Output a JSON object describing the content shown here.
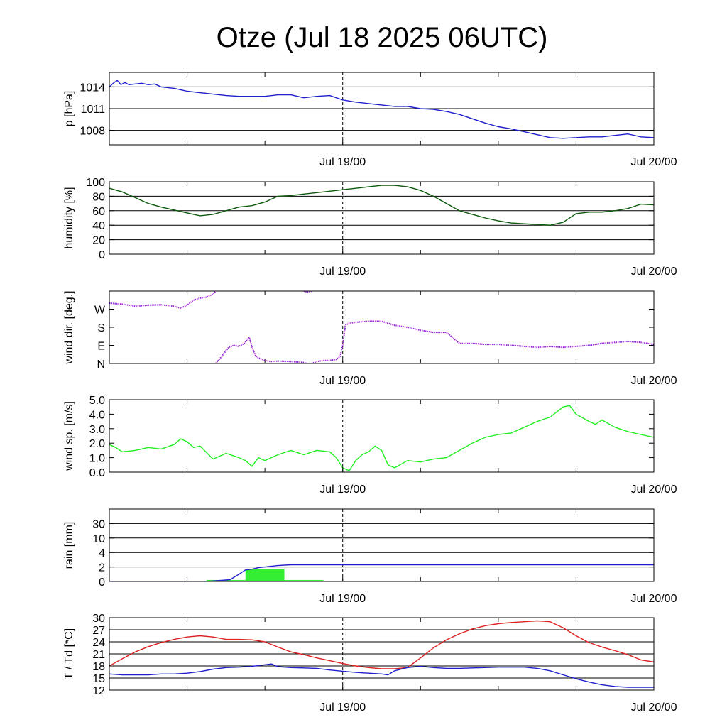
{
  "title": "Otze (Jul 18 2025 06UTC)",
  "colors": {
    "pressure": "#1f1fcc",
    "humidity": "#0b5a0b",
    "wind_dir": "#9b27d8",
    "wind_speed": "#22ee22",
    "rain_sum": "#1f1fcc",
    "rain_bar": "#33ee33",
    "temperature": "#dd2222",
    "dewpoint": "#1f1fcc"
  },
  "chart_data": [
    {
      "type": "line",
      "id": "pressure",
      "ylabel": "p [hPa]",
      "ylim": [
        1006,
        1016
      ],
      "yticks": [
        {
          "v": 1008,
          "l": "1008"
        },
        {
          "v": 1011,
          "l": "1011"
        },
        {
          "v": 1014,
          "l": "1014"
        }
      ],
      "hgrid": [
        1008,
        1011,
        1014
      ],
      "xlim": [
        0,
        42
      ],
      "xticks": [
        {
          "v": 18,
          "l": "Jul 19/00"
        },
        {
          "v": 42,
          "l": "Jul 20/00"
        }
      ],
      "minor_x": [
        6,
        12,
        24,
        30,
        36
      ],
      "vline": 18,
      "series": [
        {
          "color": "pressure",
          "x": [
            0,
            0.3,
            0.6,
            0.9,
            1.2,
            1.5,
            2,
            2.5,
            3,
            3.5,
            4,
            5,
            6,
            7,
            8,
            9,
            10,
            11,
            12,
            13,
            14,
            15,
            16,
            17,
            18,
            19,
            20,
            21,
            22,
            23,
            24,
            25,
            26,
            27,
            28,
            29,
            30,
            31,
            32,
            33,
            34,
            35,
            36,
            37,
            38,
            39,
            40,
            41,
            42
          ],
          "y": [
            1014.0,
            1014.5,
            1014.9,
            1014.3,
            1014.6,
            1014.3,
            1014.4,
            1014.5,
            1014.3,
            1014.4,
            1014.0,
            1013.8,
            1013.4,
            1013.2,
            1013.0,
            1012.8,
            1012.7,
            1012.7,
            1012.7,
            1012.9,
            1012.9,
            1012.5,
            1012.7,
            1012.8,
            1012.2,
            1011.9,
            1011.7,
            1011.5,
            1011.3,
            1011.3,
            1011.0,
            1010.9,
            1010.6,
            1010.2,
            1009.6,
            1009.0,
            1008.5,
            1008.2,
            1007.8,
            1007.4,
            1007.0,
            1006.9,
            1007.0,
            1007.1,
            1007.1,
            1007.3,
            1007.5,
            1007.1,
            1007.0
          ]
        }
      ]
    },
    {
      "type": "line",
      "id": "humidity",
      "ylabel": "humidity [%]",
      "ylim": [
        0,
        100
      ],
      "yticks": [
        {
          "v": 0,
          "l": "0"
        },
        {
          "v": 20,
          "l": "20"
        },
        {
          "v": 40,
          "l": "40"
        },
        {
          "v": 60,
          "l": "60"
        },
        {
          "v": 80,
          "l": "80"
        },
        {
          "v": 100,
          "l": "100"
        }
      ],
      "hgrid": [
        20,
        40,
        60,
        80
      ],
      "xlim": [
        0,
        42
      ],
      "xticks": [
        {
          "v": 18,
          "l": "Jul 19/00"
        },
        {
          "v": 42,
          "l": "Jul 20/00"
        }
      ],
      "minor_x": [
        6,
        12,
        24,
        30,
        36
      ],
      "vline": 18,
      "series": [
        {
          "color": "humidity",
          "x": [
            0,
            1,
            2,
            3,
            4,
            5,
            6,
            7,
            8,
            9,
            10,
            11,
            12,
            13,
            14,
            15,
            16,
            17,
            18,
            19,
            20,
            21,
            22,
            23,
            24,
            25,
            26,
            27,
            28,
            29,
            30,
            31,
            32,
            33,
            34,
            35,
            36,
            37,
            38,
            39,
            40,
            41,
            42
          ],
          "y": [
            91,
            86,
            78,
            70,
            65,
            61,
            57,
            53,
            55,
            60,
            65,
            67,
            72,
            80,
            81,
            83,
            85,
            87,
            89,
            91,
            93,
            95,
            95,
            93,
            88,
            80,
            70,
            60,
            55,
            50,
            46,
            43,
            42,
            41,
            40,
            44,
            56,
            58,
            58,
            60,
            63,
            69,
            68
          ]
        }
      ]
    },
    {
      "type": "scatter",
      "id": "wind_dir",
      "ylabel": "wind dir. [deg.]",
      "ylim": [
        0,
        360
      ],
      "yticks": [
        {
          "v": 0,
          "l": "N"
        },
        {
          "v": 90,
          "l": "E"
        },
        {
          "v": 180,
          "l": "S"
        },
        {
          "v": 270,
          "l": "W"
        }
      ],
      "hgrid": [],
      "xlim": [
        0,
        42
      ],
      "xticks": [
        {
          "v": 18,
          "l": "Jul 19/00"
        },
        {
          "v": 42,
          "l": "Jul 20/00"
        }
      ],
      "minor_x": [
        6,
        12,
        24,
        30,
        36
      ],
      "vline": 18,
      "series": [
        {
          "color": "wind_dir",
          "x": [
            0,
            1,
            2,
            3,
            4,
            5,
            5.5,
            6,
            6.5,
            7,
            7.5,
            8,
            8.2
          ],
          "y": [
            300,
            295,
            285,
            290,
            292,
            285,
            275,
            290,
            315,
            325,
            330,
            345,
            360
          ]
        },
        {
          "color": "wind_dir",
          "x": [
            15,
            15.3,
            15.6
          ],
          "y": [
            360,
            355,
            360
          ]
        },
        {
          "color": "wind_dir",
          "x": [
            8.2,
            8.6,
            9.2,
            9.6,
            10,
            10.4,
            10.8,
            11,
            11.3,
            11.6,
            12,
            12.5,
            13,
            14,
            15,
            15.5,
            16,
            16.5,
            17,
            17.5,
            17.8,
            18,
            18.2,
            18.5,
            19,
            20,
            21,
            22,
            23,
            24,
            25,
            26,
            27,
            28,
            29,
            30,
            31,
            32,
            33,
            34,
            35,
            36,
            37,
            38,
            39,
            40,
            41,
            42
          ],
          "y": [
            0,
            30,
            80,
            90,
            85,
            100,
            130,
            80,
            35,
            25,
            15,
            10,
            12,
            10,
            5,
            -3,
            10,
            15,
            15,
            20,
            35,
            90,
            190,
            200,
            205,
            210,
            210,
            190,
            180,
            165,
            155,
            155,
            100,
            100,
            95,
            95,
            90,
            85,
            80,
            85,
            80,
            85,
            90,
            100,
            105,
            110,
            105,
            95
          ]
        }
      ]
    },
    {
      "type": "line",
      "id": "wind_speed",
      "ylabel": "wind sp. [m/s]",
      "ylim": [
        0,
        5
      ],
      "yticks": [
        {
          "v": 0,
          "l": "0.0"
        },
        {
          "v": 1,
          "l": "1.0"
        },
        {
          "v": 2,
          "l": "2.0"
        },
        {
          "v": 3,
          "l": "3.0"
        },
        {
          "v": 4,
          "l": "4.0"
        },
        {
          "v": 5,
          "l": "5.0"
        }
      ],
      "hgrid": [],
      "xlim": [
        0,
        42
      ],
      "xticks": [
        {
          "v": 18,
          "l": "Jul 19/00"
        },
        {
          "v": 42,
          "l": "Jul 20/00"
        }
      ],
      "minor_x": [
        6,
        12,
        24,
        30,
        36
      ],
      "vline": 18,
      "series": [
        {
          "color": "wind_speed",
          "x": [
            0,
            0.5,
            1,
            2,
            3,
            4,
            5,
            5.5,
            6,
            6.5,
            7,
            8,
            9,
            10,
            10.5,
            11,
            11.5,
            12,
            13,
            14,
            15,
            16,
            17,
            17.5,
            18,
            18.5,
            19,
            19.5,
            20,
            20.5,
            21,
            21.5,
            22,
            23,
            24,
            25,
            26,
            27,
            28,
            29,
            30,
            31,
            32,
            33,
            34,
            35,
            35.5,
            36,
            37,
            37.5,
            38,
            39,
            40,
            41,
            42
          ],
          "y": [
            1.9,
            1.7,
            1.4,
            1.5,
            1.7,
            1.6,
            1.9,
            2.3,
            2.1,
            1.7,
            1.8,
            0.9,
            1.3,
            1.0,
            0.8,
            0.4,
            1.0,
            0.8,
            1.2,
            1.5,
            1.2,
            1.5,
            1.4,
            1.0,
            0.3,
            0.1,
            0.8,
            1.2,
            1.4,
            1.8,
            1.5,
            0.5,
            0.3,
            0.8,
            0.7,
            0.9,
            1.0,
            1.5,
            2.0,
            2.4,
            2.6,
            2.7,
            3.1,
            3.5,
            3.8,
            4.5,
            4.6,
            4.0,
            3.5,
            3.3,
            3.6,
            3.1,
            2.8,
            2.6,
            2.4
          ]
        }
      ]
    },
    {
      "type": "line",
      "id": "rain",
      "ylabel": "rain [mm]",
      "ylim": [
        0,
        5
      ],
      "yticks": [
        {
          "v": 0,
          "l": "0"
        },
        {
          "v": 1,
          "l": "2"
        },
        {
          "v": 2,
          "l": "4"
        },
        {
          "v": 3,
          "l": "10"
        },
        {
          "v": 4,
          "l": "30"
        }
      ],
      "hgrid": [
        1,
        2,
        3,
        4
      ],
      "xlim": [
        0,
        42
      ],
      "xticks": [
        {
          "v": 18,
          "l": "Jul 19/00"
        },
        {
          "v": 42,
          "l": "Jul 20/00"
        }
      ],
      "minor_x": [
        6,
        12,
        24,
        30,
        36
      ],
      "vline": 18,
      "bars": {
        "color": "rain_bar",
        "items": [
          {
            "x0": 7.5,
            "x1": 10.5,
            "y": 0.1
          },
          {
            "x0": 10.5,
            "x1": 13.5,
            "y": 0.85
          },
          {
            "x0": 13.5,
            "x1": 16.5,
            "y": 0.1
          }
        ]
      },
      "series": [
        {
          "color": "rain_sum",
          "x": [
            0,
            7.5,
            9,
            9.3,
            10,
            10.5,
            11,
            11.5,
            12,
            12.5,
            13,
            14,
            15,
            16,
            17,
            18,
            20,
            25,
            30,
            35,
            42
          ],
          "y": [
            0,
            0,
            0.1,
            0.12,
            0.5,
            0.8,
            0.85,
            0.95,
            1.0,
            1.05,
            1.1,
            1.15,
            1.15,
            1.15,
            1.15,
            1.15,
            1.15,
            1.15,
            1.15,
            1.15,
            1.15
          ]
        }
      ]
    },
    {
      "type": "line",
      "id": "temperature",
      "ylabel": "T / Td [*C]",
      "ylim": [
        12,
        30
      ],
      "yticks": [
        {
          "v": 12,
          "l": "12"
        },
        {
          "v": 15,
          "l": "15"
        },
        {
          "v": 18,
          "l": "18"
        },
        {
          "v": 21,
          "l": "21"
        },
        {
          "v": 24,
          "l": "24"
        },
        {
          "v": 27,
          "l": "27"
        },
        {
          "v": 30,
          "l": "30"
        }
      ],
      "hgrid": [
        15,
        18,
        21,
        24,
        27
      ],
      "xlim": [
        0,
        42
      ],
      "xticks": [
        {
          "v": 18,
          "l": "Jul 19/00"
        },
        {
          "v": 42,
          "l": "Jul 20/00"
        }
      ],
      "minor_x": [
        6,
        12,
        24,
        30,
        36
      ],
      "vline": 18,
      "series": [
        {
          "color": "temperature",
          "x": [
            0,
            1,
            2,
            3,
            4,
            5,
            6,
            7,
            8,
            9,
            10,
            11,
            12,
            13,
            14,
            15,
            16,
            17,
            18,
            19,
            20,
            21,
            22,
            23,
            24,
            25,
            26,
            27,
            28,
            29,
            30,
            31,
            32,
            33,
            34,
            35,
            36,
            37,
            38,
            39,
            40,
            41,
            42
          ],
          "y": [
            18.0,
            19.8,
            21.5,
            22.8,
            23.8,
            24.6,
            25.2,
            25.5,
            25.2,
            24.6,
            24.6,
            24.5,
            24.0,
            22.7,
            21.5,
            20.8,
            20.0,
            19.3,
            18.6,
            18.0,
            17.6,
            17.3,
            17.3,
            17.6,
            20.0,
            22.5,
            24.5,
            26.0,
            27.2,
            28.0,
            28.5,
            28.8,
            29.0,
            29.2,
            29.0,
            27.5,
            25.5,
            23.8,
            22.7,
            21.8,
            20.8,
            19.5,
            19.0
          ]
        },
        {
          "color": "dewpoint",
          "x": [
            0,
            1,
            2,
            3,
            4,
            5,
            6,
            7,
            8,
            9,
            10,
            11,
            12,
            12.5,
            13,
            14,
            15,
            16,
            17,
            18,
            19,
            20,
            21,
            21.5,
            22,
            23,
            24,
            25,
            26,
            27,
            28,
            29,
            30,
            31,
            32,
            33,
            34,
            35,
            36,
            37,
            38,
            39,
            40,
            41,
            42
          ],
          "y": [
            16.0,
            15.8,
            15.8,
            15.8,
            16.0,
            16.0,
            16.2,
            16.6,
            17.2,
            17.6,
            17.7,
            17.9,
            18.3,
            18.5,
            17.8,
            17.6,
            17.5,
            17.4,
            17.0,
            16.7,
            16.4,
            16.2,
            16.0,
            15.8,
            16.8,
            17.6,
            17.9,
            17.6,
            17.4,
            17.4,
            17.5,
            17.6,
            17.7,
            17.7,
            17.7,
            17.4,
            16.8,
            15.8,
            14.8,
            14.0,
            13.3,
            12.9,
            12.7,
            12.7,
            12.7
          ]
        }
      ]
    }
  ]
}
